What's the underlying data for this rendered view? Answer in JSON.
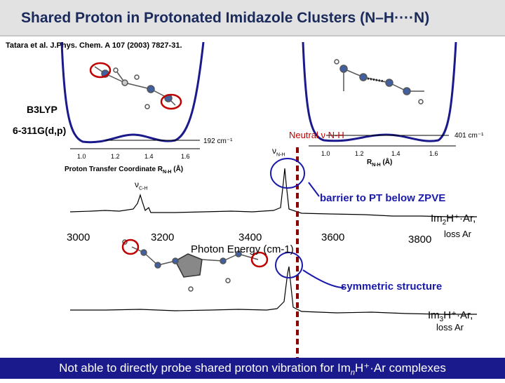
{
  "title": "Shared Proton in Protonated Imidazole Clusters (N–H····N)",
  "reference": "Tatara et al. J.Phys. Chem. A 107 (2003) 7827-31.",
  "method_line1": "B3LYP",
  "method_line2": "6-311G(d,p)",
  "left_potential": {
    "ticks": [
      "1.0",
      "1.2",
      "1.4",
      "1.6"
    ],
    "energy_label": "192 cm⁻¹",
    "axis_label": "Proton Transfer Coordinate R",
    "axis_sub": "N-H",
    "axis_unit": " (Å)"
  },
  "right_potential": {
    "title": "Neutral ν N-H",
    "energy_label": "401 cm⁻¹",
    "ticks": [
      "1.0",
      "1.2",
      "1.4",
      "1.6"
    ],
    "axis_label": "R",
    "axis_sub": "N-H",
    "axis_unit": " (Å)"
  },
  "nu_nh": "ν",
  "nu_nh_sub": "N-H",
  "nu_ch": "ν",
  "nu_ch_sub": "C-H",
  "spectrum_ticks": [
    "3000",
    "3200",
    "3400",
    "3600",
    "3800"
  ],
  "spectrum_xlabel": "Photon Energy (cm-1)",
  "annotation_barrier": "barrier to PT below ZPVE",
  "annotation_symmetric": "symmetric structure",
  "im2": {
    "pre": "Im",
    "sub": "2",
    "post": "H⁺·Ar,",
    "loss": "loss Ar"
  },
  "im3": {
    "pre": "Im",
    "sub": "3",
    "post": "H⁺·Ar,",
    "loss": "loss Ar"
  },
  "footer": {
    "pre": "Not able to directly probe shared proton vibration for Im",
    "sub": "n",
    "post": "H⁺·Ar complexes"
  },
  "colors": {
    "title_bg": "#e2e2e2",
    "title_text": "#1a2a5a",
    "footer_bg": "#1a1a8c",
    "annotation_blue": "#1a1aaa",
    "highlight_red": "#c00000",
    "curve": "#1a1a8c"
  }
}
